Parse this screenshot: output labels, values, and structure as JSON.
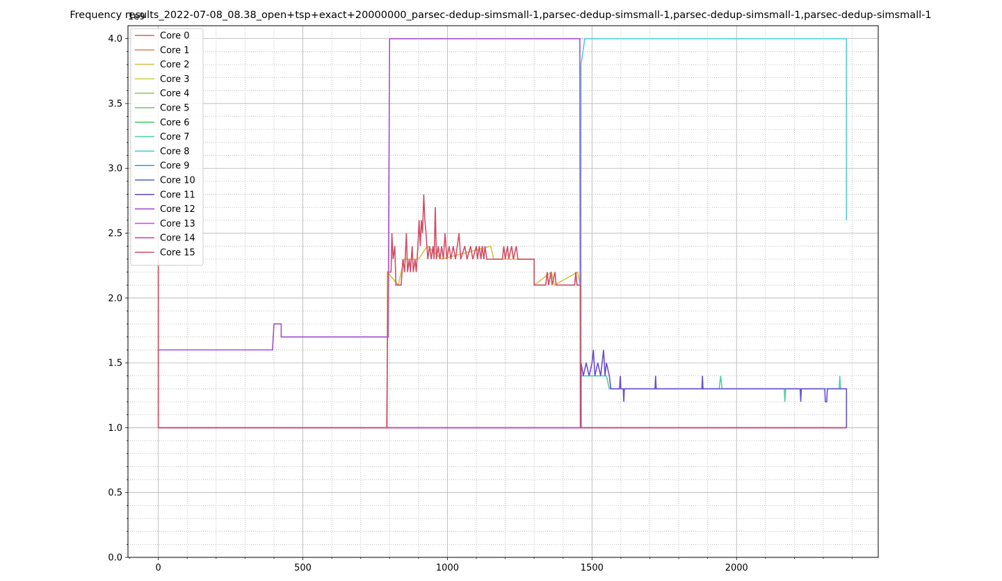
{
  "chart_data": {
    "type": "line",
    "title": "Frequency results_2022-07-08_08.38_open+tsp+exact+20000000_parsec-dedup-simsmall-1,parsec-dedup-simsmall-1,parsec-dedup-simsmall-1,parsec-dedup-simsmall-1",
    "xlabel": "",
    "ylabel": "",
    "y_offset_label": "1e9",
    "xlim": [
      -105,
      2490
    ],
    "ylim": [
      0,
      4.1
    ],
    "x_ticks": [
      0,
      500,
      1000,
      1500,
      2000
    ],
    "x_tick_labels": [
      "0",
      "500",
      "1000",
      "1500",
      "2000"
    ],
    "y_ticks": [
      0,
      0.5,
      1,
      1.5,
      2,
      2.5,
      3,
      3.5,
      4
    ],
    "y_tick_labels": [
      "0.0",
      "0.5",
      "1.0",
      "1.5",
      "2.0",
      "2.5",
      "3.0",
      "3.5",
      "4.0"
    ],
    "grid": "major solid, minor dotted",
    "legend_position": "upper-left",
    "series": [
      {
        "name": "Core 0",
        "color": "#db5f57",
        "points": [
          [
            0,
            2.3
          ],
          [
            0,
            1.0
          ],
          [
            2380,
            1.0
          ]
        ]
      },
      {
        "name": "Core 1",
        "color": "#db8e57",
        "points": [
          [
            0,
            1.0
          ],
          [
            2380,
            1.0
          ]
        ]
      },
      {
        "name": "Core 2",
        "color": "#d3c04e",
        "points": [
          [
            0,
            1.0
          ],
          [
            792,
            1.0
          ],
          [
            792,
            2.2
          ],
          [
            830,
            2.1
          ],
          [
            850,
            2.3
          ],
          [
            900,
            2.3
          ],
          [
            930,
            2.4
          ],
          [
            980,
            2.3
          ],
          [
            1150,
            2.4
          ],
          [
            1160,
            2.3
          ],
          [
            1300,
            2.3
          ],
          [
            1300,
            2.1
          ],
          [
            1360,
            2.2
          ],
          [
            1370,
            2.1
          ],
          [
            1450,
            2.2
          ],
          [
            1460,
            2.1
          ],
          [
            1460,
            1.0
          ],
          [
            2380,
            1.0
          ]
        ]
      },
      {
        "name": "Core 3",
        "color": "#c7d04e",
        "points": [
          [
            0,
            1.0
          ],
          [
            2380,
            1.0
          ]
        ]
      },
      {
        "name": "Core 4",
        "color": "#91d04e",
        "points": [
          [
            0,
            1.0
          ],
          [
            2380,
            1.0
          ]
        ]
      },
      {
        "name": "Core 5",
        "color": "#5bd04e",
        "points": [
          [
            0,
            1.0
          ],
          [
            2380,
            1.0
          ]
        ]
      },
      {
        "name": "Core 6",
        "color": "#4ed070",
        "points": [
          [
            0,
            1.0
          ],
          [
            2380,
            1.0
          ]
        ]
      },
      {
        "name": "Core 7",
        "color": "#4ed0a6",
        "points": [
          [
            0,
            1.0
          ],
          [
            1462,
            1.0
          ],
          [
            1462,
            1.4
          ],
          [
            1550,
            1.4
          ],
          [
            1560,
            1.3
          ],
          [
            1940,
            1.3
          ],
          [
            1945,
            1.4
          ],
          [
            1950,
            1.3
          ],
          [
            2165,
            1.3
          ],
          [
            2167,
            1.2
          ],
          [
            2170,
            1.3
          ],
          [
            2355,
            1.3
          ],
          [
            2357,
            1.4
          ],
          [
            2360,
            1.3
          ],
          [
            2380,
            1.3
          ],
          [
            2380,
            1.0
          ]
        ]
      },
      {
        "name": "Core 8",
        "color": "#4ecdd0",
        "points": [
          [
            0,
            1.0
          ],
          [
            1462,
            1.0
          ],
          [
            1462,
            3.8
          ],
          [
            1475,
            4.0
          ],
          [
            2380,
            4.0
          ],
          [
            2380,
            2.6
          ]
        ]
      },
      {
        "name": "Core 9",
        "color": "#4e9ad0",
        "points": [
          [
            0,
            1.0
          ],
          [
            2380,
            1.0
          ]
        ]
      },
      {
        "name": "Core 10",
        "color": "#4e62d0",
        "points": [
          [
            0,
            1.0
          ],
          [
            2380,
            1.0
          ]
        ]
      },
      {
        "name": "Core 11",
        "color": "#6a4ed0",
        "points": [
          [
            0,
            1.0
          ],
          [
            1462,
            1.0
          ],
          [
            1462,
            1.5
          ],
          [
            1470,
            1.4
          ],
          [
            1480,
            1.5
          ],
          [
            1490,
            1.4
          ],
          [
            1500,
            1.5
          ],
          [
            1505,
            1.6
          ],
          [
            1510,
            1.4
          ],
          [
            1520,
            1.5
          ],
          [
            1530,
            1.4
          ],
          [
            1540,
            1.6
          ],
          [
            1545,
            1.4
          ],
          [
            1550,
            1.5
          ],
          [
            1560,
            1.4
          ],
          [
            1565,
            1.3
          ],
          [
            1595,
            1.3
          ],
          [
            1598,
            1.4
          ],
          [
            1600,
            1.3
          ],
          [
            1608,
            1.3
          ],
          [
            1610,
            1.2
          ],
          [
            1612,
            1.3
          ],
          [
            1718,
            1.3
          ],
          [
            1720,
            1.4
          ],
          [
            1722,
            1.3
          ],
          [
            1880,
            1.3
          ],
          [
            1882,
            1.4
          ],
          [
            1884,
            1.3
          ],
          [
            2220,
            1.3
          ],
          [
            2222,
            1.2
          ],
          [
            2224,
            1.3
          ],
          [
            2305,
            1.3
          ],
          [
            2307,
            1.2
          ],
          [
            2312,
            1.2
          ],
          [
            2314,
            1.3
          ],
          [
            2380,
            1.3
          ],
          [
            2380,
            1.0
          ]
        ]
      },
      {
        "name": "Core 12",
        "color": "#a34ed0",
        "points": [
          [
            0,
            1.6
          ],
          [
            395,
            1.6
          ],
          [
            400,
            1.8
          ],
          [
            425,
            1.8
          ],
          [
            425,
            1.7
          ],
          [
            795,
            1.7
          ],
          [
            800,
            4.0
          ],
          [
            1458,
            4.0
          ],
          [
            1460,
            1.0
          ],
          [
            2380,
            1.0
          ]
        ]
      },
      {
        "name": "Core 13",
        "color": "#d04ed0",
        "points": [
          [
            0,
            1.0
          ],
          [
            2380,
            1.0
          ]
        ]
      },
      {
        "name": "Core 14",
        "color": "#d04e9a",
        "points": [
          [
            0,
            1.0
          ],
          [
            2380,
            1.0
          ]
        ]
      },
      {
        "name": "Core 15",
        "color": "#d04e64",
        "points": [
          [
            0,
            2.3
          ],
          [
            0,
            1.0
          ],
          [
            790,
            1.0
          ],
          [
            795,
            2.2
          ],
          [
            805,
            2.2
          ],
          [
            808,
            2.5
          ],
          [
            812,
            2.3
          ],
          [
            818,
            2.4
          ],
          [
            822,
            2.1
          ],
          [
            840,
            2.1
          ],
          [
            846,
            2.3
          ],
          [
            852,
            2.2
          ],
          [
            858,
            2.5
          ],
          [
            862,
            2.2
          ],
          [
            868,
            2.3
          ],
          [
            872,
            2.2
          ],
          [
            878,
            2.4
          ],
          [
            882,
            2.2
          ],
          [
            888,
            2.3
          ],
          [
            892,
            2.2
          ],
          [
            898,
            2.4
          ],
          [
            902,
            2.6
          ],
          [
            906,
            2.4
          ],
          [
            910,
            2.6
          ],
          [
            914,
            2.5
          ],
          [
            918,
            2.8
          ],
          [
            922,
            2.6
          ],
          [
            926,
            2.5
          ],
          [
            932,
            2.3
          ],
          [
            938,
            2.4
          ],
          [
            944,
            2.3
          ],
          [
            950,
            2.4
          ],
          [
            954,
            2.3
          ],
          [
            958,
            2.7
          ],
          [
            962,
            2.3
          ],
          [
            968,
            2.4
          ],
          [
            974,
            2.3
          ],
          [
            980,
            2.4
          ],
          [
            986,
            2.3
          ],
          [
            992,
            2.5
          ],
          [
            998,
            2.3
          ],
          [
            1006,
            2.4
          ],
          [
            1012,
            2.3
          ],
          [
            1020,
            2.4
          ],
          [
            1028,
            2.3
          ],
          [
            1040,
            2.5
          ],
          [
            1046,
            2.3
          ],
          [
            1060,
            2.4
          ],
          [
            1068,
            2.3
          ],
          [
            1080,
            2.4
          ],
          [
            1088,
            2.3
          ],
          [
            1100,
            2.4
          ],
          [
            1104,
            2.3
          ],
          [
            1110,
            2.4
          ],
          [
            1116,
            2.3
          ],
          [
            1120,
            2.4
          ],
          [
            1126,
            2.3
          ],
          [
            1130,
            2.4
          ],
          [
            1136,
            2.3
          ],
          [
            1190,
            2.3
          ],
          [
            1195,
            2.4
          ],
          [
            1200,
            2.3
          ],
          [
            1208,
            2.4
          ],
          [
            1212,
            2.3
          ],
          [
            1222,
            2.4
          ],
          [
            1228,
            2.3
          ],
          [
            1238,
            2.4
          ],
          [
            1244,
            2.3
          ],
          [
            1300,
            2.3
          ],
          [
            1300,
            2.1
          ],
          [
            1340,
            2.1
          ],
          [
            1345,
            2.2
          ],
          [
            1350,
            2.1
          ],
          [
            1358,
            2.2
          ],
          [
            1362,
            2.1
          ],
          [
            1372,
            2.2
          ],
          [
            1376,
            2.1
          ],
          [
            1440,
            2.1
          ],
          [
            1444,
            2.2
          ],
          [
            1448,
            2.1
          ],
          [
            1460,
            2.1
          ],
          [
            1460,
            1.0
          ],
          [
            2380,
            1.0
          ]
        ]
      }
    ]
  }
}
